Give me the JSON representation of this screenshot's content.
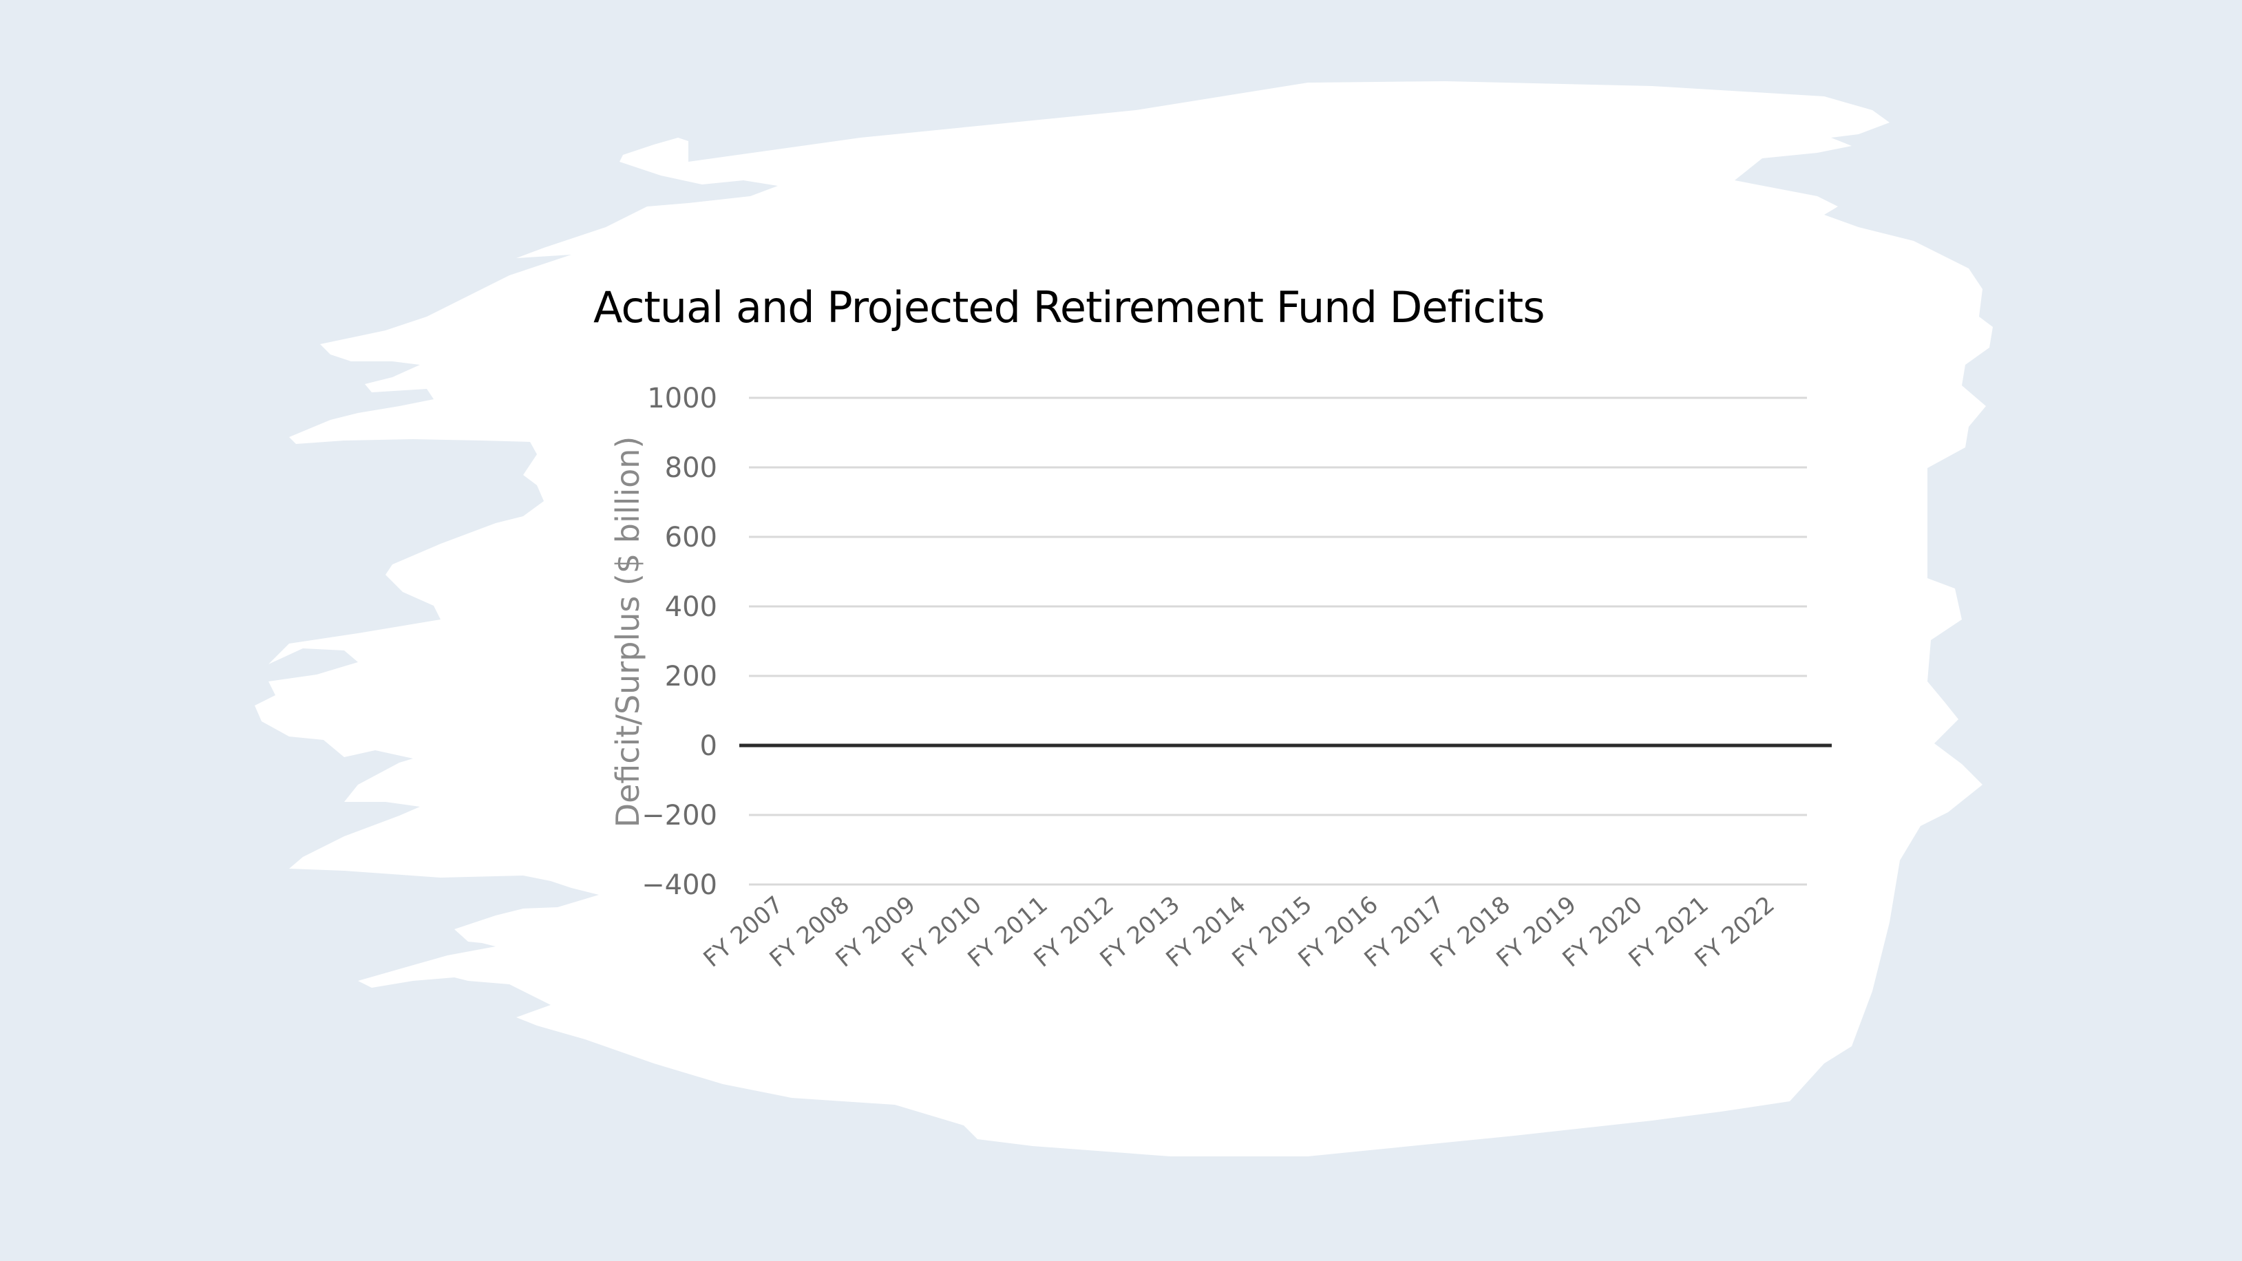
{
  "chart_data": {
    "type": "line",
    "title": "Actual and Projected Retirement Fund Deficits",
    "ylabel": "Deficit/Surplus ($ billion)",
    "xlabel": "",
    "ylim": [
      -400,
      1000
    ],
    "y_ticks": [
      1000,
      800,
      600,
      400,
      200,
      0,
      -200,
      -400
    ],
    "categories": [
      "FY 2007",
      "FY 2008",
      "FY 2009",
      "FY 2010",
      "FY 2011",
      "FY 2012",
      "FY 2013",
      "FY 2014",
      "FY 2015",
      "FY 2016",
      "FY 2017",
      "FY 2018",
      "FY 2019",
      "FY 2020",
      "FY 2021",
      "FY 2022"
    ],
    "series": [
      {
        "values": [
          0,
          0,
          0,
          0,
          0,
          0,
          0,
          0,
          0,
          0,
          0,
          0,
          0,
          0,
          0,
          0
        ]
      }
    ],
    "grid": true,
    "colors": {
      "background": "#e5ecf3",
      "panel": "#ffffff",
      "grid": "#d9d9d9",
      "zero_line": "#2b2b2b",
      "tick_text": "#6b6b6b",
      "axis_label": "#8a8a8a",
      "title": "#000000"
    }
  }
}
